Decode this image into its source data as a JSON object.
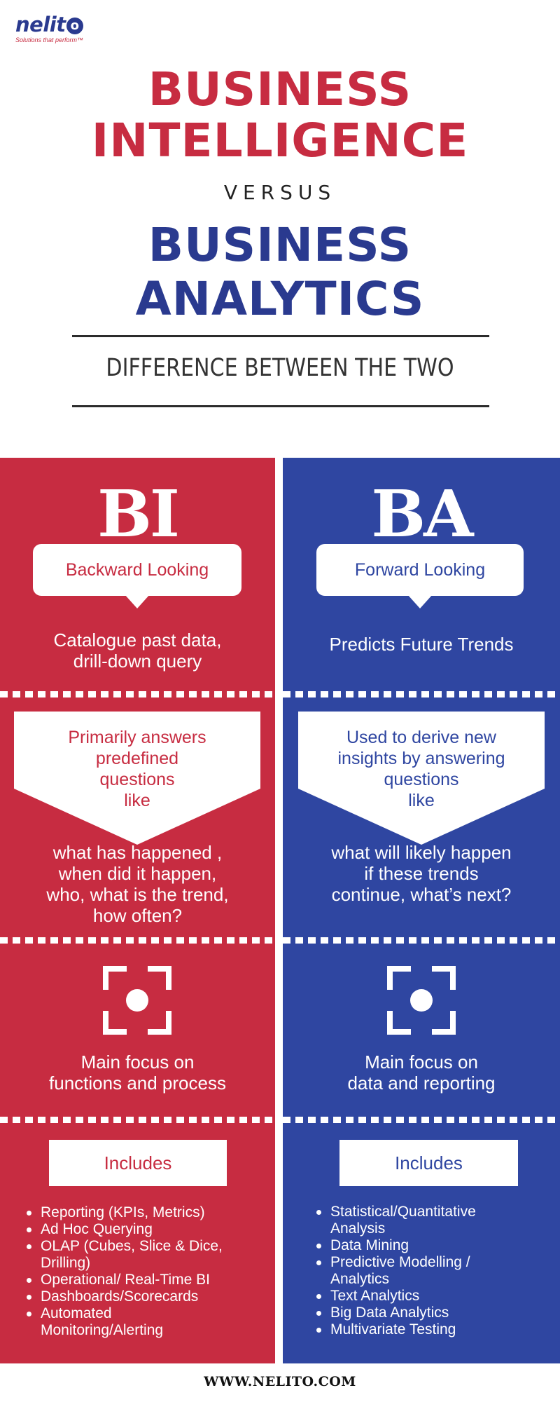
{
  "logo": {
    "name_prefix": "nelit",
    "name_suffix": "o",
    "tagline": "Solutions that perform™"
  },
  "heading": {
    "line1": "BUSINESS",
    "line2": "INTELLIGENCE",
    "versus": "VERSUS",
    "line3": "BUSINESS",
    "line4": "ANALYTICS",
    "subtitle": "DIFFERENCE BETWEEN THE TWO"
  },
  "colors": {
    "red": "#c72c41",
    "blue": "#2f46a1",
    "navy": "#2a3a8f"
  },
  "bi": {
    "title": "BI",
    "bubble": "Backward Looking",
    "desc_line1": "Catalogue past data,",
    "desc_line2": "drill-down query",
    "arrow_lines": [
      "Primarily answers",
      "predefined",
      "questions",
      "like"
    ],
    "questions_lines": [
      "what has happened ,",
      "when did it happen,",
      "who, what is the trend,",
      "how often?"
    ],
    "focus_icon": "focus-icon",
    "focus_lines": [
      "Main focus on",
      "functions and process"
    ],
    "includes_label": "Includes",
    "includes": [
      [
        "Reporting (KPIs, Metrics)"
      ],
      [
        "Ad Hoc Querying"
      ],
      [
        "OLAP (Cubes, Slice & Dice,",
        "Drilling)"
      ],
      [
        "Operational/ Real-Time BI"
      ],
      [
        "Dashboards/Scorecards"
      ],
      [
        "Automated",
        "Monitoring/Alerting"
      ]
    ]
  },
  "ba": {
    "title": "BA",
    "bubble": "Forward Looking",
    "desc_line1": "Predicts Future Trends",
    "arrow_lines": [
      "Used to derive new",
      "insights by answering",
      "questions",
      "like"
    ],
    "questions_lines": [
      "what will likely happen",
      "if these trends",
      "continue, what’s next?"
    ],
    "focus_icon": "focus-icon",
    "focus_lines": [
      "Main focus on",
      "data and reporting"
    ],
    "includes_label": "Includes",
    "includes": [
      [
        "Statistical/Quantitative",
        "Analysis"
      ],
      [
        "Data Mining"
      ],
      [
        "Predictive Modelling /",
        "Analytics"
      ],
      [
        "Text Analytics"
      ],
      [
        "Big Data Analytics"
      ],
      [
        "Multivariate Testing"
      ]
    ]
  },
  "footer": {
    "url": "WWW.NELITO.COM"
  }
}
